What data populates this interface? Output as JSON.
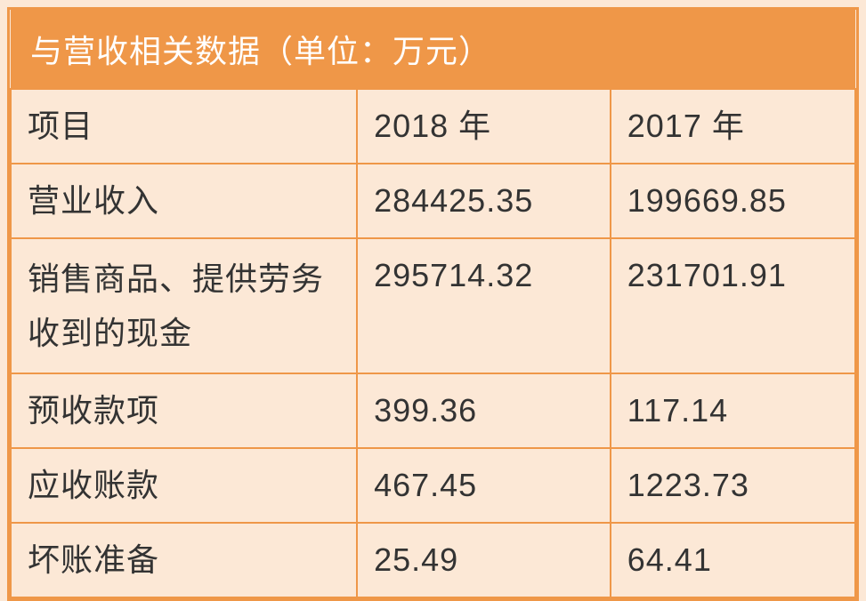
{
  "title": "与营收相关数据（单位：万元）",
  "columns": [
    "项目",
    "2018 年",
    "2017 年"
  ],
  "rows": [
    {
      "item": "营业收入",
      "y2018": "284425.35",
      "y2017": "199669.85",
      "multiline": false
    },
    {
      "item": "销售商品、提供劳务收到的现金",
      "y2018": "295714.32",
      "y2017": "231701.91",
      "multiline": true
    },
    {
      "item": "预收款项",
      "y2018": "399.36",
      "y2017": "117.14",
      "multiline": false
    },
    {
      "item": "应收账款",
      "y2018": "467.45",
      "y2017": "1223.73",
      "multiline": false
    },
    {
      "item": "坏账准备",
      "y2018": "25.49",
      "y2017": "64.41",
      "multiline": false
    }
  ],
  "style": {
    "border_color": "#ef9748",
    "header_bg": "#ef9748",
    "header_text_color": "#ffffff",
    "cell_bg": "#fce8d6",
    "cell_text_color": "#333333",
    "title_fontsize": 36,
    "cell_fontsize": 36,
    "body_bg": "#fce8d6"
  }
}
